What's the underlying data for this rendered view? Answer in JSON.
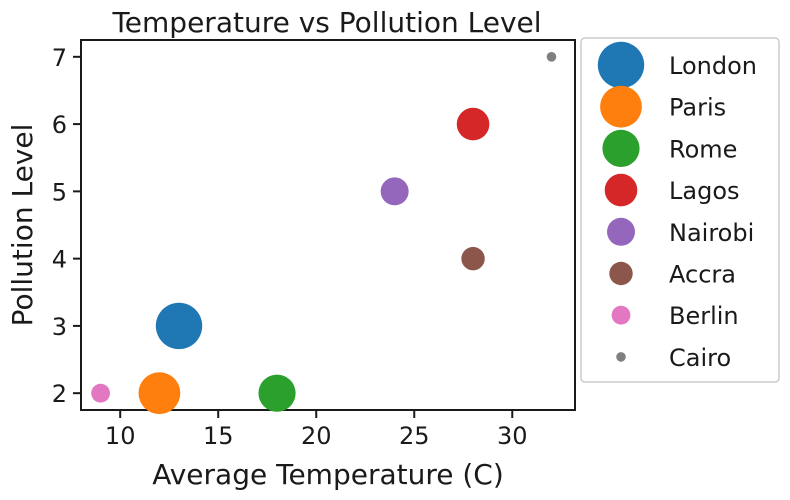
{
  "chart_data": {
    "type": "scatter",
    "title": "Temperature vs Pollution Level",
    "xlabel": "Average Temperature (C)",
    "ylabel": "Pollution Level",
    "xlim": [
      8,
      33.2
    ],
    "ylim": [
      1.75,
      7.25
    ],
    "xticks": [
      10,
      15,
      20,
      25,
      30
    ],
    "yticks": [
      2,
      3,
      4,
      5,
      6,
      7
    ],
    "grid": false,
    "legend_position": "outside-right",
    "series": [
      {
        "name": "London",
        "x": 13,
        "y": 3,
        "size": 9,
        "color": "#1f77b4"
      },
      {
        "name": "Paris",
        "x": 12,
        "y": 2,
        "size": 8,
        "color": "#ff7f0e"
      },
      {
        "name": "Rome",
        "x": 18,
        "y": 2,
        "size": 7,
        "color": "#2ca02c"
      },
      {
        "name": "Lagos",
        "x": 28,
        "y": 6,
        "size": 6,
        "color": "#d62728"
      },
      {
        "name": "Nairobi",
        "x": 24,
        "y": 5,
        "size": 5,
        "color": "#9467bd"
      },
      {
        "name": "Accra",
        "x": 28,
        "y": 4,
        "size": 4,
        "color": "#8c564b"
      },
      {
        "name": "Berlin",
        "x": 9,
        "y": 2,
        "size": 3,
        "color": "#e377c2"
      },
      {
        "name": "Cairo",
        "x": 32,
        "y": 7,
        "size": 1,
        "color": "#7f7f7f"
      }
    ]
  }
}
